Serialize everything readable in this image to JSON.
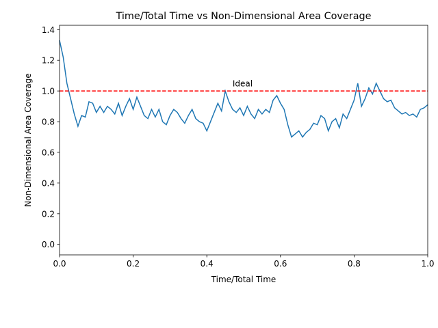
{
  "chart_data": {
    "type": "line",
    "title": "Time/Total Time vs Non-Dimensional Area Coverage",
    "xlabel": "Time/Total Time",
    "ylabel": "Non-Dimensional Area Coverage",
    "color": "#1f77b4",
    "x": [
      0,
      0.01,
      0.02,
      0.03,
      0.04,
      0.05,
      0.06,
      0.07,
      0.08,
      0.09,
      0.1,
      0.11,
      0.12,
      0.13,
      0.14,
      0.15,
      0.16,
      0.17,
      0.18,
      0.19,
      0.2,
      0.21,
      0.22,
      0.23,
      0.24,
      0.25,
      0.26,
      0.27,
      0.28,
      0.29,
      0.3,
      0.31,
      0.32,
      0.33,
      0.34,
      0.35,
      0.36,
      0.37,
      0.38,
      0.39,
      0.4,
      0.41,
      0.42,
      0.43,
      0.44,
      0.45,
      0.46,
      0.47,
      0.48,
      0.49,
      0.5,
      0.51,
      0.52,
      0.53,
      0.54,
      0.55,
      0.56,
      0.57,
      0.58,
      0.59,
      0.6,
      0.61,
      0.62,
      0.63,
      0.64,
      0.65,
      0.66,
      0.67,
      0.68,
      0.69,
      0.7,
      0.71,
      0.72,
      0.73,
      0.74,
      0.75,
      0.76,
      0.77,
      0.78,
      0.79,
      0.8,
      0.81,
      0.82,
      0.83,
      0.84,
      0.85,
      0.86,
      0.87,
      0.88,
      0.89,
      0.9,
      0.91,
      0.92,
      0.93,
      0.94,
      0.95,
      0.96,
      0.97,
      0.98,
      0.99,
      1.0
    ],
    "values": [
      1.33,
      1.22,
      1.05,
      0.95,
      0.85,
      0.77,
      0.84,
      0.83,
      0.93,
      0.92,
      0.86,
      0.9,
      0.86,
      0.9,
      0.88,
      0.85,
      0.92,
      0.84,
      0.9,
      0.95,
      0.88,
      0.96,
      0.9,
      0.84,
      0.82,
      0.88,
      0.83,
      0.88,
      0.8,
      0.78,
      0.84,
      0.88,
      0.86,
      0.82,
      0.79,
      0.84,
      0.88,
      0.82,
      0.8,
      0.79,
      0.74,
      0.8,
      0.86,
      0.92,
      0.87,
      1.0,
      0.93,
      0.88,
      0.86,
      0.89,
      0.84,
      0.9,
      0.85,
      0.82,
      0.88,
      0.85,
      0.88,
      0.86,
      0.94,
      0.97,
      0.92,
      0.88,
      0.78,
      0.7,
      0.72,
      0.74,
      0.7,
      0.73,
      0.75,
      0.79,
      0.78,
      0.84,
      0.82,
      0.74,
      0.8,
      0.82,
      0.76,
      0.85,
      0.82,
      0.88,
      0.94,
      1.05,
      0.9,
      0.95,
      1.02,
      0.98,
      1.05,
      1.0,
      0.95,
      0.93,
      0.94,
      0.89,
      0.87,
      0.85,
      0.86,
      0.84,
      0.85,
      0.83,
      0.88,
      0.89,
      0.91
    ],
    "xlim": [
      0,
      1
    ],
    "xticks": [
      {
        "value": 0,
        "label": "0.0"
      },
      0.2,
      0.4,
      0.6,
      0.8,
      {
        "value": 1,
        "label": "1.0"
      }
    ],
    "ylim": [
      -0.068,
      1.428
    ],
    "yticks": [
      {
        "value": 0,
        "label": "0.0"
      },
      0.2,
      0.4,
      0.6,
      0.8,
      {
        "value": 1,
        "label": "1.0"
      },
      1.2,
      1.4
    ],
    "reference_lines": [
      {
        "y": 1.0,
        "color": "#ff0000",
        "style": "dashed"
      }
    ],
    "annotations": [
      {
        "text": "Ideal",
        "x": 0.47,
        "y": 1.03,
        "color": "#ff0000"
      }
    ]
  }
}
